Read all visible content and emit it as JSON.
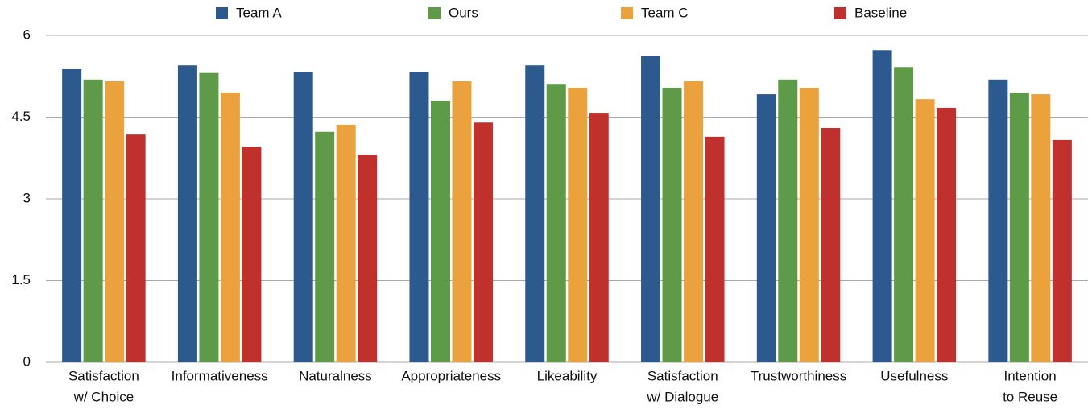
{
  "chart_data": {
    "type": "bar",
    "categories": [
      [
        "Satisfaction",
        "w/ Choice"
      ],
      [
        "Informativeness"
      ],
      [
        "Naturalness"
      ],
      [
        "Appropriateness"
      ],
      [
        "Likeability"
      ],
      [
        "Satisfaction",
        "w/ Dialogue"
      ],
      [
        "Trustworthiness"
      ],
      [
        "Usefulness"
      ],
      [
        "Intention",
        "to Reuse"
      ]
    ],
    "series": [
      {
        "name": "Team A",
        "color": "#2d5a8e",
        "values": [
          5.38,
          5.45,
          5.33,
          5.33,
          5.45,
          5.62,
          4.92,
          5.73,
          5.19
        ]
      },
      {
        "name": "Ours",
        "color": "#5e9a48",
        "values": [
          5.19,
          5.31,
          4.23,
          4.8,
          5.11,
          5.04,
          5.19,
          5.42,
          4.95
        ]
      },
      {
        "name": "Team C",
        "color": "#eba23d",
        "values": [
          5.16,
          4.95,
          4.36,
          5.16,
          5.04,
          5.16,
          5.04,
          4.83,
          4.92
        ]
      },
      {
        "name": "Baseline",
        "color": "#c0302c",
        "values": [
          4.18,
          3.96,
          3.81,
          4.4,
          4.58,
          4.14,
          4.3,
          4.67,
          4.08
        ]
      }
    ],
    "ylim": [
      0,
      6
    ],
    "yticks": [
      0,
      1.5,
      3,
      4.5,
      6
    ],
    "grid": true,
    "legend": "top"
  }
}
